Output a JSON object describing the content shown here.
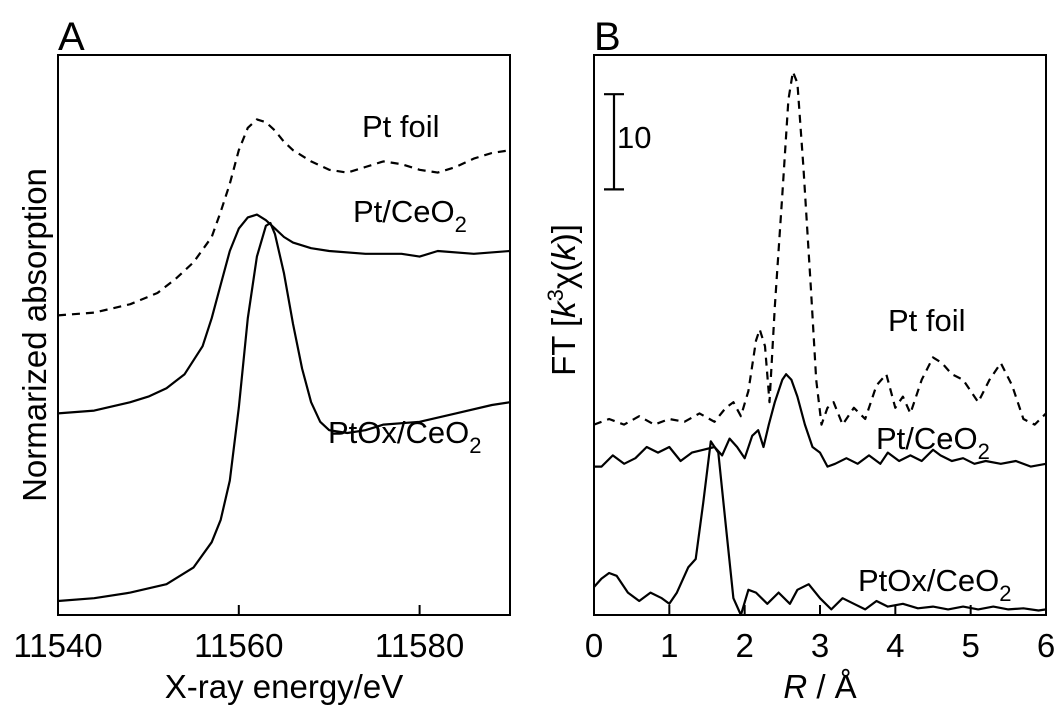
{
  "chart_data": [
    {
      "type": "line",
      "panel": "A",
      "xlabel": "X-ray energy/eV",
      "ylabel": "Normarized absorption",
      "xlim": [
        11540,
        11590
      ],
      "xticks": [
        11540,
        11560,
        11580
      ],
      "tick_labels": [
        "11540",
        "11560",
        "11580"
      ],
      "y_ticks_shown": false,
      "series": [
        {
          "name": "Pt foil",
          "style": "dashed",
          "x": [
            11540,
            11544,
            11548,
            11551,
            11553,
            11555,
            11557,
            11558,
            11559,
            11560,
            11561,
            11562,
            11563,
            11564,
            11565,
            11566,
            11567,
            11568,
            11570,
            11572,
            11574,
            11576,
            11578,
            11580,
            11582,
            11584,
            11586,
            11588,
            11590
          ],
          "y": [
            0.535,
            0.54,
            0.555,
            0.575,
            0.6,
            0.63,
            0.675,
            0.72,
            0.77,
            0.83,
            0.87,
            0.885,
            0.88,
            0.865,
            0.845,
            0.83,
            0.82,
            0.81,
            0.795,
            0.79,
            0.8,
            0.81,
            0.805,
            0.795,
            0.79,
            0.8,
            0.815,
            0.825,
            0.83
          ]
        },
        {
          "name": "Pt/CeO",
          "name_subscript": "2",
          "style": "solid",
          "x": [
            11540,
            11544,
            11548,
            11550,
            11552,
            11554,
            11556,
            11557,
            11558,
            11559,
            11560,
            11561,
            11562,
            11563,
            11564,
            11565,
            11566,
            11568,
            11570,
            11574,
            11578,
            11580,
            11582,
            11586,
            11590
          ],
          "y": [
            0.36,
            0.365,
            0.38,
            0.39,
            0.405,
            0.43,
            0.48,
            0.53,
            0.59,
            0.65,
            0.69,
            0.71,
            0.715,
            0.705,
            0.69,
            0.675,
            0.665,
            0.655,
            0.65,
            0.645,
            0.645,
            0.64,
            0.65,
            0.645,
            0.65
          ]
        },
        {
          "name": "PtOx/CeO",
          "name_subscript": "2",
          "style": "solid",
          "x": [
            11540,
            11544,
            11548,
            11552,
            11555,
            11557,
            11558,
            11559,
            11560,
            11561,
            11562,
            11563,
            11563.5,
            11564,
            11565,
            11566,
            11567,
            11568,
            11569,
            11570,
            11572,
            11574,
            11576,
            11580,
            11584,
            11588,
            11590
          ],
          "y": [
            0.025,
            0.03,
            0.04,
            0.055,
            0.085,
            0.13,
            0.17,
            0.24,
            0.37,
            0.53,
            0.64,
            0.695,
            0.7,
            0.68,
            0.61,
            0.52,
            0.44,
            0.38,
            0.345,
            0.33,
            0.325,
            0.33,
            0.34,
            0.345,
            0.36,
            0.375,
            0.38
          ]
        }
      ]
    },
    {
      "type": "line",
      "panel": "B",
      "xlabel": "R / Å",
      "ylabel": "FT [k³χ(k)]",
      "xlim": [
        0,
        6
      ],
      "xticks": [
        0,
        1,
        2,
        3,
        4,
        5,
        6
      ],
      "tick_labels": [
        "0",
        "1",
        "2",
        "3",
        "4",
        "5",
        "6"
      ],
      "y_ticks_shown": false,
      "scale_bar": {
        "value": 10,
        "label": "10",
        "top": 0.93,
        "bottom": 0.76
      },
      "series": [
        {
          "name": "Pt foil",
          "style": "dashed",
          "x": [
            0,
            0.2,
            0.4,
            0.6,
            0.8,
            1.0,
            1.2,
            1.4,
            1.6,
            1.75,
            1.85,
            1.95,
            2.05,
            2.15,
            2.2,
            2.27,
            2.33,
            2.4,
            2.5,
            2.58,
            2.64,
            2.7,
            2.78,
            2.88,
            2.95,
            3.02,
            3.1,
            3.18,
            3.3,
            3.45,
            3.6,
            3.75,
            3.88,
            4.0,
            4.1,
            4.2,
            4.35,
            4.5,
            4.62,
            4.75,
            4.9,
            5.1,
            5.25,
            5.4,
            5.55,
            5.7,
            5.85,
            6.0
          ],
          "y": [
            0.34,
            0.35,
            0.34,
            0.355,
            0.34,
            0.35,
            0.345,
            0.36,
            0.345,
            0.37,
            0.38,
            0.355,
            0.4,
            0.49,
            0.51,
            0.48,
            0.38,
            0.55,
            0.75,
            0.92,
            0.97,
            0.95,
            0.8,
            0.58,
            0.42,
            0.34,
            0.37,
            0.38,
            0.34,
            0.37,
            0.35,
            0.41,
            0.43,
            0.37,
            0.39,
            0.36,
            0.42,
            0.46,
            0.45,
            0.43,
            0.42,
            0.38,
            0.42,
            0.45,
            0.41,
            0.35,
            0.34,
            0.36
          ]
        },
        {
          "name": "Pt/CeO",
          "name_subscript": "2",
          "style": "solid",
          "x": [
            0,
            0.1,
            0.25,
            0.4,
            0.55,
            0.7,
            0.85,
            1.0,
            1.15,
            1.3,
            1.45,
            1.6,
            1.7,
            1.8,
            1.9,
            2.0,
            2.1,
            2.18,
            2.25,
            2.32,
            2.4,
            2.5,
            2.55,
            2.62,
            2.7,
            2.8,
            2.9,
            3.0,
            3.1,
            3.2,
            3.35,
            3.5,
            3.65,
            3.8,
            3.9,
            4.05,
            4.2,
            4.35,
            4.5,
            4.6,
            4.75,
            4.9,
            5.05,
            5.2,
            5.4,
            5.6,
            5.8,
            6.0
          ],
          "y": [
            0.265,
            0.265,
            0.285,
            0.27,
            0.28,
            0.3,
            0.29,
            0.3,
            0.275,
            0.29,
            0.295,
            0.3,
            0.285,
            0.315,
            0.3,
            0.28,
            0.32,
            0.33,
            0.3,
            0.34,
            0.38,
            0.42,
            0.43,
            0.42,
            0.39,
            0.34,
            0.3,
            0.29,
            0.265,
            0.27,
            0.28,
            0.27,
            0.285,
            0.27,
            0.29,
            0.275,
            0.285,
            0.275,
            0.295,
            0.285,
            0.275,
            0.28,
            0.27,
            0.275,
            0.27,
            0.275,
            0.265,
            0.27
          ]
        },
        {
          "name": "PtOx/CeO",
          "name_subscript": "2",
          "style": "solid",
          "x": [
            0,
            0.1,
            0.2,
            0.3,
            0.45,
            0.6,
            0.75,
            0.9,
            1.0,
            1.1,
            1.25,
            1.35,
            1.45,
            1.55,
            1.65,
            1.75,
            1.85,
            1.95,
            2.05,
            2.15,
            2.3,
            2.45,
            2.6,
            2.7,
            2.85,
            3.0,
            3.15,
            3.3,
            3.45,
            3.6,
            3.75,
            3.9,
            4.1,
            4.3,
            4.5,
            4.7,
            4.9,
            5.1,
            5.3,
            5.5,
            5.7,
            5.9,
            6.0
          ],
          "y": [
            0.05,
            0.065,
            0.075,
            0.07,
            0.04,
            0.025,
            0.04,
            0.03,
            0.02,
            0.04,
            0.085,
            0.1,
            0.2,
            0.31,
            0.29,
            0.16,
            0.03,
            0.0,
            0.045,
            0.04,
            0.02,
            0.04,
            0.02,
            0.045,
            0.055,
            0.03,
            0.01,
            0.03,
            0.02,
            0.01,
            0.025,
            0.015,
            0.02,
            0.012,
            0.015,
            0.01,
            0.015,
            0.01,
            0.015,
            0.01,
            0.012,
            0.008,
            0.01
          ]
        }
      ]
    }
  ]
}
